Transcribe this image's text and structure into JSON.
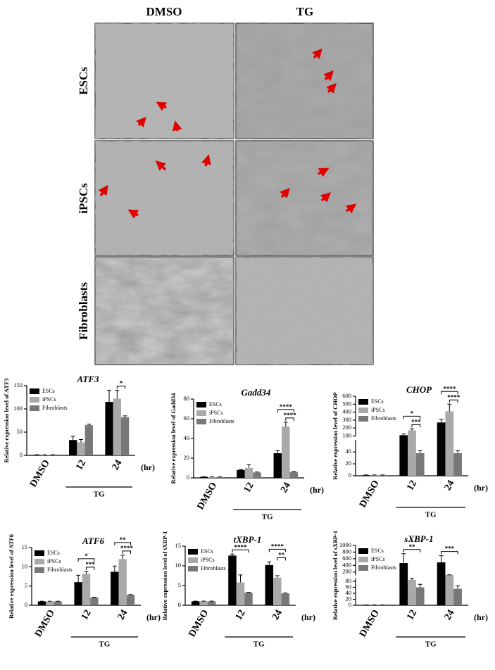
{
  "micrographs": {
    "columns": [
      "DMSO",
      "TG"
    ],
    "rows": [
      "ESCs",
      "iPSCs",
      "Fibroblasts"
    ]
  },
  "chart_data": [
    {
      "type": "bar",
      "title": "ATF3",
      "ylabel": "Relative expression level of ATF3",
      "categories": [
        "DMSO",
        "12",
        "24"
      ],
      "x_group_label": "TG",
      "x_unit": "(hr)",
      "ylim": [
        0,
        150
      ],
      "yticks": [
        0,
        50,
        100,
        150
      ],
      "series": [
        {
          "name": "ESCs",
          "color": "#000000",
          "values": [
            1,
            33,
            115
          ],
          "errors": [
            0.3,
            8,
            25
          ]
        },
        {
          "name": "iPSCs",
          "color": "#a9a9a9",
          "values": [
            1,
            28,
            122
          ],
          "errors": [
            0.3,
            6,
            18
          ]
        },
        {
          "name": "Fibroblasts",
          "color": "#787878",
          "values": [
            1,
            65,
            82
          ],
          "errors": [
            0.3,
            2,
            3
          ]
        }
      ],
      "significance": [
        {
          "category": "24",
          "from": "iPSCs",
          "to": "Fibroblasts",
          "label": "*"
        }
      ]
    },
    {
      "type": "bar",
      "title": "Gadd34",
      "ylabel": "Relative expression level of Gadd34",
      "categories": [
        "DMSO",
        "12",
        "24"
      ],
      "x_group_label": "TG",
      "x_unit": "(hr)",
      "ylim": [
        0,
        80
      ],
      "yticks": [
        0,
        20,
        40,
        60,
        80
      ],
      "series": [
        {
          "name": "ESCs",
          "color": "#000000",
          "values": [
            1,
            8,
            25
          ],
          "errors": [
            0.2,
            0.5,
            2.5
          ]
        },
        {
          "name": "iPSCs",
          "color": "#a9a9a9",
          "values": [
            0.8,
            10,
            52
          ],
          "errors": [
            0.2,
            3.5,
            4.5
          ]
        },
        {
          "name": "Fibroblasts",
          "color": "#787878",
          "values": [
            0.8,
            5.5,
            6
          ],
          "errors": [
            0.2,
            0.5,
            0.5
          ]
        }
      ],
      "significance": [
        {
          "category": "24",
          "from": "iPSCs",
          "to": "Fibroblasts",
          "label": "****"
        },
        {
          "category": "24",
          "from": "ESCs",
          "to": "Fibroblasts",
          "label": "****"
        }
      ]
    },
    {
      "type": "bar",
      "title": "CHOP",
      "ylabel": "Relative expression level of CHOP",
      "categories": [
        "DMSO",
        "12",
        "24"
      ],
      "x_group_label": "TG",
      "x_unit": "(hr)",
      "ylim": [
        0,
        600
      ],
      "y_break": [
        60,
        100
      ],
      "yticks": [
        0,
        20,
        40,
        100,
        200,
        300,
        400,
        500,
        600
      ],
      "series": [
        {
          "name": "ESCs",
          "color": "#000000",
          "values": [
            1,
            110,
            270
          ],
          "errors": [
            0.3,
            15,
            40
          ]
        },
        {
          "name": "iPSCs",
          "color": "#a9a9a9",
          "values": [
            1,
            170,
            410
          ],
          "errors": [
            0.3,
            20,
            90
          ]
        },
        {
          "name": "Fibroblasts",
          "color": "#787878",
          "values": [
            1,
            38,
            38
          ],
          "errors": [
            0.3,
            4,
            4
          ]
        }
      ],
      "significance": [
        {
          "category": "12",
          "from": "iPSCs",
          "to": "Fibroblasts",
          "label": "***"
        },
        {
          "category": "12",
          "from": "ESCs",
          "to": "Fibroblasts",
          "label": "*"
        },
        {
          "category": "24",
          "from": "iPSCs",
          "to": "Fibroblasts",
          "label": "****"
        },
        {
          "category": "24",
          "from": "ESCs",
          "to": "Fibroblasts",
          "label": "****"
        }
      ]
    },
    {
      "type": "bar",
      "title": "ATF6",
      "ylabel": "Relative expression level of ATF6",
      "categories": [
        "DMSO",
        "12",
        "24"
      ],
      "x_group_label": "TG",
      "x_unit": "(hr)",
      "ylim": [
        0,
        15
      ],
      "yticks": [
        0,
        5,
        10,
        15
      ],
      "series": [
        {
          "name": "ESCs",
          "color": "#000000",
          "values": [
            1,
            6,
            8.7
          ],
          "errors": [
            0.05,
            1.8,
            1.5
          ]
        },
        {
          "name": "iPSCs",
          "color": "#a9a9a9",
          "values": [
            1,
            8.2,
            12
          ],
          "errors": [
            0.05,
            0.6,
            1
          ]
        },
        {
          "name": "Fibroblasts",
          "color": "#787878",
          "values": [
            1,
            2,
            2.7
          ],
          "errors": [
            0.05,
            0.1,
            0.1
          ]
        }
      ],
      "significance": [
        {
          "category": "12",
          "from": "iPSCs",
          "to": "Fibroblasts",
          "label": "***"
        },
        {
          "category": "12",
          "from": "ESCs",
          "to": "Fibroblasts",
          "label": "*"
        },
        {
          "category": "24",
          "from": "iPSCs",
          "to": "Fibroblasts",
          "label": "****"
        },
        {
          "category": "24",
          "from": "ESCs",
          "to": "Fibroblasts",
          "label": "**"
        }
      ]
    },
    {
      "type": "bar",
      "title": "tXBP-1",
      "ylabel": "Relative expression level of tXBP-1",
      "categories": [
        "DMSO",
        "12",
        "24"
      ],
      "x_group_label": "TG",
      "x_unit": "(hr)",
      "ylim": [
        0,
        15
      ],
      "yticks": [
        0,
        5,
        10,
        15
      ],
      "series": [
        {
          "name": "ESCs",
          "color": "#000000",
          "values": [
            1,
            12.6,
            10.2
          ],
          "errors": [
            0.05,
            0.4,
            0.8
          ]
        },
        {
          "name": "iPSCs",
          "color": "#a9a9a9",
          "values": [
            1,
            5.8,
            7
          ],
          "errors": [
            0.05,
            1.9,
            0.5
          ]
        },
        {
          "name": "Fibroblasts",
          "color": "#787878",
          "values": [
            1,
            3.2,
            3
          ],
          "errors": [
            0.05,
            0.1,
            0.1
          ]
        }
      ],
      "significance": [
        {
          "category": "12",
          "from": "ESCs",
          "to": "Fibroblasts",
          "label": "****"
        },
        {
          "category": "24",
          "from": "iPSCs",
          "to": "Fibroblasts",
          "label": "**"
        },
        {
          "category": "24",
          "from": "ESCs",
          "to": "Fibroblasts",
          "label": "****"
        }
      ]
    },
    {
      "type": "bar",
      "title": "sXBP-1",
      "ylabel": "Relative expression level of sXBP-1",
      "categories": [
        "DMSO",
        "12",
        "24"
      ],
      "x_group_label": "TG",
      "x_unit": "(hr)",
      "ylim": [
        0,
        1000
      ],
      "y_break": [
        90,
        100
      ],
      "yticks": [
        0,
        20,
        40,
        60,
        80,
        200,
        400,
        600,
        800,
        1000
      ],
      "series": [
        {
          "name": "ESCs",
          "color": "#000000",
          "values": [
            1,
            470,
            490
          ],
          "errors": [
            0.3,
            280,
            200
          ]
        },
        {
          "name": "iPSCs",
          "color": "#a9a9a9",
          "values": [
            1,
            85,
            110
          ],
          "errors": [
            0.3,
            10,
            5
          ]
        },
        {
          "name": "Fibroblasts",
          "color": "#787878",
          "values": [
            1,
            60,
            55
          ],
          "errors": [
            0.3,
            10,
            10
          ]
        }
      ],
      "significance": [
        {
          "category": "12",
          "from": "ESCs",
          "to": "Fibroblasts",
          "label": "**"
        },
        {
          "category": "24",
          "from": "ESCs",
          "to": "Fibroblasts",
          "label": "***"
        }
      ]
    }
  ]
}
